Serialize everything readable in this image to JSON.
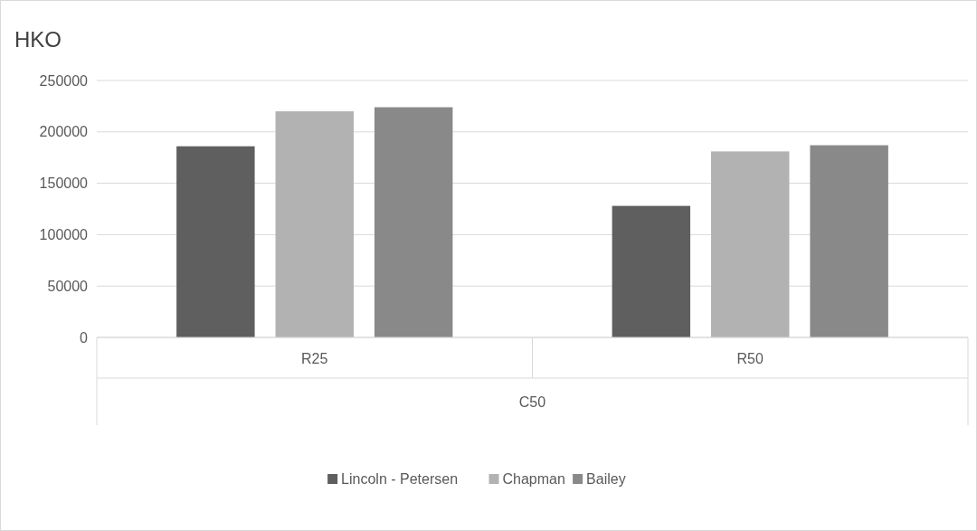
{
  "chart_data": {
    "type": "bar",
    "title": "HKO",
    "xlabel": "C50",
    "categories": [
      "R25",
      "R50"
    ],
    "series": [
      {
        "name": "Lincoln - Petersen",
        "color": "#5f5f5f",
        "values": [
          186000,
          128000
        ]
      },
      {
        "name": "Chapman",
        "color": "#b2b2b2",
        "values": [
          220000,
          181000
        ]
      },
      {
        "name": "Bailey",
        "color": "#898989",
        "values": [
          224000,
          187000
        ]
      }
    ],
    "ylim": [
      0,
      250000
    ],
    "yticks": [
      0,
      50000,
      100000,
      150000,
      200000,
      250000
    ],
    "grid": "y",
    "legend": "bottom"
  }
}
